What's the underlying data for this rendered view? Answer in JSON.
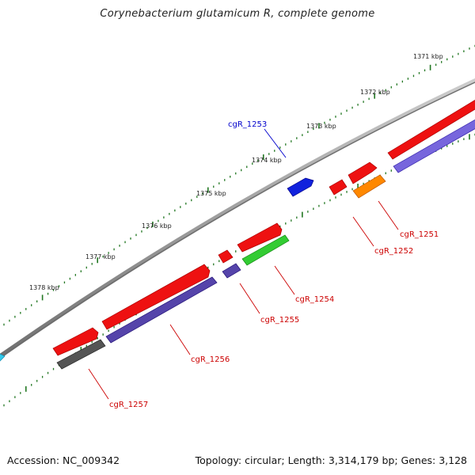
{
  "title": "Corynebacterium glutamicum R, complete genome",
  "footer": {
    "accession": "Accession: NC_009342",
    "topology": "Topology: circular; Length: 3,314,179 bp; Genes: 3,128"
  },
  "scale_labels": [
    "1371 kbp",
    "1372 kbp",
    "1373 kbp",
    "1374 kbp",
    "1375 kbp",
    "1376 kbp",
    "1377 kbp",
    "1378 kbp"
  ],
  "genes": [
    {
      "label": "cgR_1251",
      "color": "#cc0000"
    },
    {
      "label": "cgR_1252",
      "color": "#cc0000"
    },
    {
      "label": "cgR_1253",
      "color": "#0000cc"
    },
    {
      "label": "cgR_1254",
      "color": "#cc0000"
    },
    {
      "label": "cgR_1255",
      "color": "#cc0000"
    },
    {
      "label": "cgR_1256",
      "color": "#cc0000"
    },
    {
      "label": "cgR_1257",
      "color": "#cc0000"
    }
  ],
  "colors": {
    "backbone": "#8a8a8a",
    "cds_forward": "#ee1111",
    "cds_reverse_blue": "#5544aa",
    "orange": "#ff8800",
    "green": "#33cc33",
    "blue": "#1122dd",
    "grey": "#555555",
    "cyan": "#33ccee",
    "tick": "#227722"
  }
}
